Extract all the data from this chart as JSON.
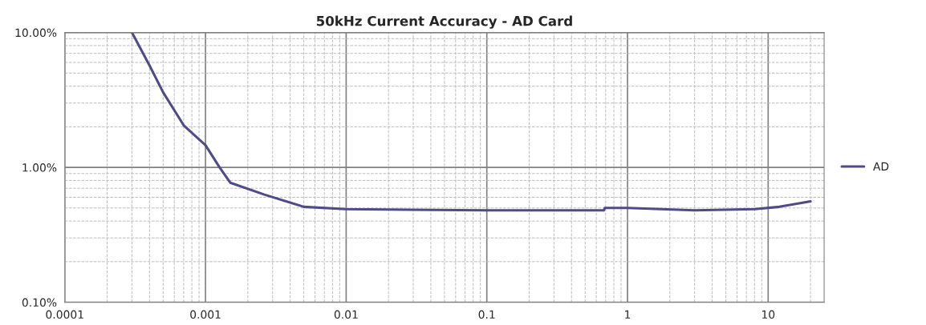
{
  "chart_data": {
    "type": "line",
    "title": "50kHz Current Accuracy - AD Card",
    "log": "xy",
    "xlim": [
      0.0001,
      25
    ],
    "ylim": [
      0.1,
      10
    ],
    "xticks": [
      0.0001,
      0.001,
      0.01,
      0.1,
      1,
      10
    ],
    "yticks": [
      {
        "value": 0.1,
        "label": "0.10%"
      },
      {
        "value": 1,
        "label": "1.00%"
      },
      {
        "value": 10,
        "label": "10.00%"
      }
    ],
    "grid": true,
    "legend": "right",
    "marker": "none",
    "line_style": "solid",
    "series": [
      {
        "name": "AD",
        "color": "#4f4a8a",
        "x": [
          0.0003,
          0.0004,
          0.0005,
          0.0007,
          0.001,
          0.00126,
          0.0015,
          0.0026,
          0.005,
          0.01,
          0.1,
          0.68,
          0.69,
          1,
          3,
          8,
          12,
          20
        ],
        "values": [
          10,
          5.7,
          3.6,
          2.05,
          1.46,
          1.0,
          0.77,
          0.63,
          0.51,
          0.49,
          0.48,
          0.48,
          0.5,
          0.5,
          0.48,
          0.49,
          0.51,
          0.56
        ]
      }
    ]
  }
}
